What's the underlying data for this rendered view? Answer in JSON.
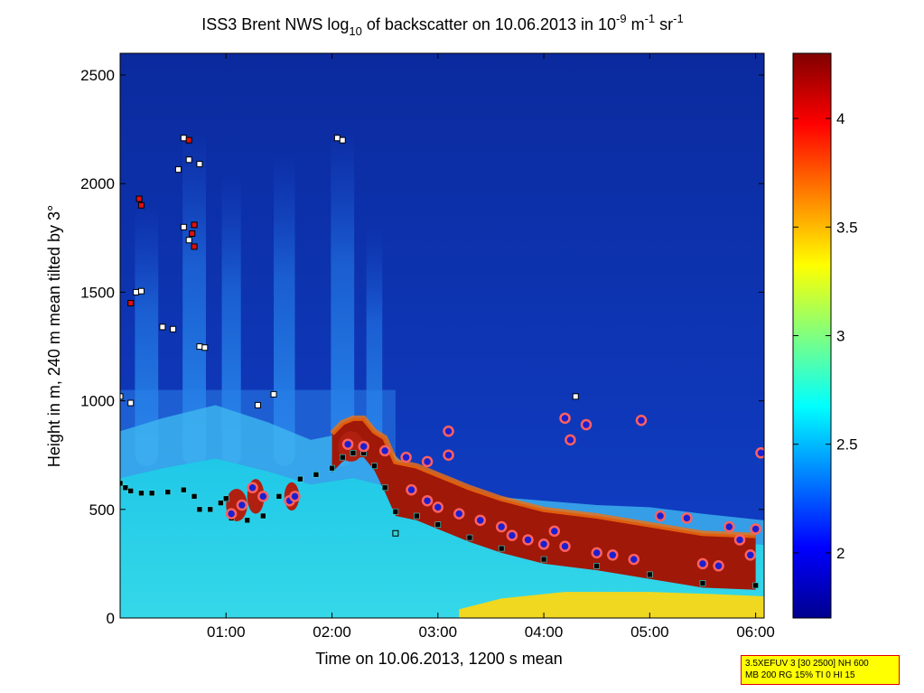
{
  "chart_data": {
    "type": "heatmap",
    "title": {
      "prefix": "ISS3 Brent NWS log",
      "sub": "10",
      "mid": " of backscatter on 10.06.2013 in 10",
      "sup1": "-9",
      "m": " m",
      "sup2": "-1",
      "sr": " sr",
      "sup3": "-1"
    },
    "xlabel": "Time on 10.06.2013, 1200 s mean",
    "ylabel": "Height in m, 240 m mean tilted by 3°",
    "x_range_hours": [
      0,
      6.08
    ],
    "x_ticks": [
      {
        "value": 1,
        "label": "01:00"
      },
      {
        "value": 2,
        "label": "02:00"
      },
      {
        "value": 3,
        "label": "03:00"
      },
      {
        "value": 4,
        "label": "04:00"
      },
      {
        "value": 5,
        "label": "05:00"
      },
      {
        "value": 6,
        "label": "06:00"
      }
    ],
    "y_range_m": [
      0,
      2600
    ],
    "y_ticks": [
      {
        "value": 0,
        "label": "0"
      },
      {
        "value": 500,
        "label": "500"
      },
      {
        "value": 1000,
        "label": "1000"
      },
      {
        "value": 1500,
        "label": "1500"
      },
      {
        "value": 2000,
        "label": "2000"
      },
      {
        "value": 2500,
        "label": "2500"
      }
    ],
    "colorbar": {
      "range": [
        1.7,
        4.3
      ],
      "ticks": [
        {
          "value": 2,
          "label": "2"
        },
        {
          "value": 2.5,
          "label": "2.5"
        },
        {
          "value": 3,
          "label": "3"
        },
        {
          "value": 3.5,
          "label": "3.5"
        },
        {
          "value": 4,
          "label": "4"
        }
      ]
    },
    "boundary_layer_top_m": [
      [
        0.0,
        860
      ],
      [
        0.4,
        920
      ],
      [
        0.9,
        980
      ],
      [
        1.4,
        900
      ],
      [
        1.8,
        820
      ],
      [
        2.0,
        840
      ],
      [
        2.2,
        860
      ],
      [
        2.45,
        820
      ],
      [
        2.7,
        700
      ],
      [
        3.0,
        630
      ],
      [
        3.5,
        560
      ],
      [
        4.0,
        540
      ],
      [
        4.5,
        520
      ],
      [
        5.0,
        510
      ],
      [
        5.5,
        480
      ],
      [
        6.08,
        450
      ]
    ],
    "black_layer_points": [
      [
        0.0,
        620
      ],
      [
        0.05,
        600
      ],
      [
        0.1,
        585
      ],
      [
        0.2,
        575
      ],
      [
        0.3,
        575
      ],
      [
        0.45,
        580
      ],
      [
        0.6,
        590
      ],
      [
        0.7,
        560
      ],
      [
        0.75,
        500
      ],
      [
        0.85,
        500
      ],
      [
        0.95,
        530
      ],
      [
        1.0,
        550
      ],
      [
        1.05,
        460
      ],
      [
        1.2,
        450
      ],
      [
        1.35,
        470
      ],
      [
        1.5,
        560
      ],
      [
        1.65,
        560
      ],
      [
        1.7,
        640
      ],
      [
        1.85,
        660
      ],
      [
        2.0,
        690
      ],
      [
        2.1,
        740
      ],
      [
        2.2,
        760
      ],
      [
        2.3,
        760
      ],
      [
        2.4,
        700
      ],
      [
        2.5,
        600
      ],
      [
        2.6,
        490
      ],
      [
        2.8,
        470
      ],
      [
        3.0,
        430
      ],
      [
        3.3,
        370
      ],
      [
        3.6,
        320
      ],
      [
        4.0,
        270
      ],
      [
        4.5,
        240
      ],
      [
        5.0,
        200
      ],
      [
        5.5,
        160
      ],
      [
        6.0,
        150
      ]
    ],
    "cloud_base_circles": [
      [
        1.05,
        480
      ],
      [
        1.15,
        520
      ],
      [
        1.25,
        600
      ],
      [
        1.35,
        560
      ],
      [
        1.6,
        540
      ],
      [
        1.65,
        560
      ],
      [
        2.15,
        800
      ],
      [
        2.3,
        790
      ],
      [
        2.5,
        770
      ],
      [
        2.7,
        740
      ],
      [
        2.9,
        720
      ],
      [
        3.1,
        750
      ],
      [
        3.1,
        860
      ],
      [
        2.75,
        590
      ],
      [
        2.9,
        540
      ],
      [
        3.0,
        510
      ],
      [
        3.2,
        480
      ],
      [
        3.4,
        450
      ],
      [
        3.6,
        420
      ],
      [
        3.7,
        380
      ],
      [
        3.85,
        360
      ],
      [
        4.0,
        340
      ],
      [
        4.1,
        400
      ],
      [
        4.2,
        330
      ],
      [
        4.2,
        920
      ],
      [
        4.25,
        820
      ],
      [
        4.4,
        890
      ],
      [
        4.5,
        300
      ],
      [
        4.65,
        290
      ],
      [
        4.85,
        270
      ],
      [
        4.92,
        910
      ],
      [
        5.1,
        470
      ],
      [
        5.35,
        460
      ],
      [
        5.5,
        250
      ],
      [
        5.65,
        240
      ],
      [
        5.75,
        420
      ],
      [
        5.85,
        360
      ],
      [
        5.95,
        290
      ],
      [
        6.0,
        410
      ],
      [
        6.05,
        760
      ]
    ],
    "high_cloud_squares": [
      [
        0.1,
        1450,
        "red"
      ],
      [
        0.15,
        1500,
        "white"
      ],
      [
        0.2,
        1505,
        "white"
      ],
      [
        0.18,
        1930,
        "red"
      ],
      [
        0.2,
        1900,
        "red"
      ],
      [
        0.4,
        1340,
        "white"
      ],
      [
        0.5,
        1330,
        "white"
      ],
      [
        0.6,
        2210,
        "white"
      ],
      [
        0.65,
        2200,
        "red"
      ],
      [
        0.55,
        2065,
        "white"
      ],
      [
        0.65,
        2110,
        "white"
      ],
      [
        0.75,
        2090,
        "white"
      ],
      [
        0.6,
        1800,
        "white"
      ],
      [
        0.7,
        1810,
        "red"
      ],
      [
        0.68,
        1770,
        "red"
      ],
      [
        0.7,
        1710,
        "red"
      ],
      [
        0.65,
        1740,
        "white"
      ],
      [
        0.75,
        1250,
        "white"
      ],
      [
        0.8,
        1245,
        "white"
      ],
      [
        0.0,
        1020,
        "white"
      ],
      [
        0.1,
        990,
        "white"
      ],
      [
        1.3,
        980,
        "white"
      ],
      [
        1.45,
        1030,
        "white"
      ],
      [
        2.05,
        2210,
        "white"
      ],
      [
        2.1,
        2200,
        "white"
      ],
      [
        4.3,
        1020,
        "white"
      ],
      [
        2.6,
        390,
        "cyan"
      ]
    ]
  },
  "info_box": {
    "line1": "3.5XEFUV 3 [30 2500] NH 600",
    "line2": "MB 200 RG 15% TI 0 HI 15"
  },
  "colors": {
    "background_low": "#0b2fa8",
    "border_box": "#e00000",
    "info_fill": "#ffff00",
    "circle_edge": "#cc2020",
    "circle_fill": "#1a20d0"
  }
}
